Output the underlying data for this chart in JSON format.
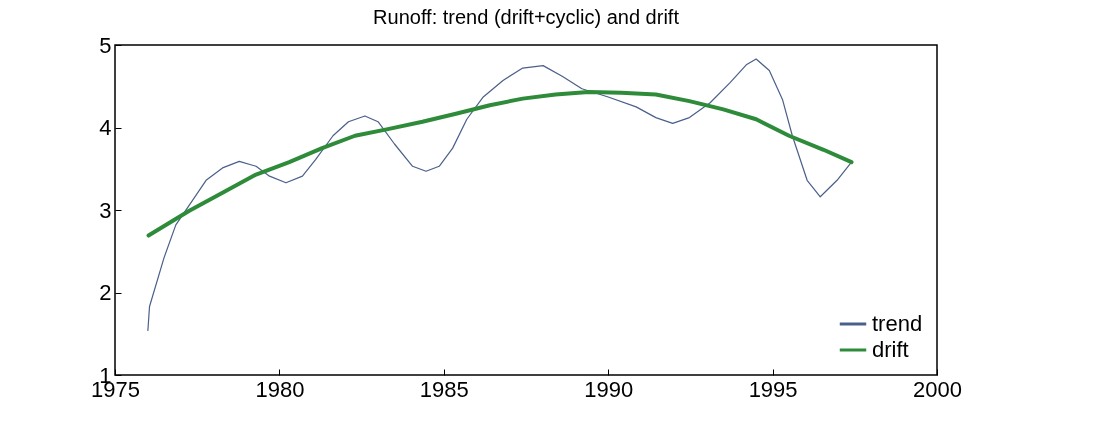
{
  "chart_data": {
    "type": "line",
    "title": "Runoff: trend (drift+cyclic) and drift",
    "xlim": [
      1975,
      2000
    ],
    "xticks": [
      1975,
      1980,
      1985,
      1990,
      1995,
      2000
    ],
    "ylim": [
      1,
      5
    ],
    "yticks": [
      1,
      2,
      3,
      4,
      5
    ],
    "grid": false,
    "legend": "bottom right",
    "series": [
      {
        "name": "trend",
        "color": "#4a5f8a",
        "x": [
          1976.0,
          1976.05,
          1976.49,
          1976.85,
          1977.26,
          1977.77,
          1978.27,
          1978.78,
          1979.29,
          1979.7,
          1980.2,
          1980.7,
          1981.1,
          1981.63,
          1982.1,
          1982.6,
          1983.0,
          1983.5,
          1984.05,
          1984.46,
          1984.86,
          1985.27,
          1985.7,
          1986.2,
          1986.8,
          1987.4,
          1988.02,
          1988.6,
          1989.2,
          1990.0,
          1990.85,
          1991.45,
          1991.96,
          1992.47,
          1993.1,
          1993.7,
          1994.2,
          1994.5,
          1994.9,
          1995.3,
          1995.6,
          1996.05,
          1996.45,
          1996.96,
          1997.4
        ],
        "values": [
          1.54,
          1.83,
          2.42,
          2.82,
          3.06,
          3.36,
          3.51,
          3.59,
          3.53,
          3.41,
          3.33,
          3.41,
          3.61,
          3.9,
          4.07,
          4.14,
          4.07,
          3.8,
          3.53,
          3.47,
          3.53,
          3.75,
          4.1,
          4.37,
          4.57,
          4.72,
          4.75,
          4.62,
          4.47,
          4.37,
          4.25,
          4.12,
          4.05,
          4.12,
          4.3,
          4.54,
          4.76,
          4.83,
          4.69,
          4.34,
          3.9,
          3.36,
          3.16,
          3.36,
          3.58
        ]
      },
      {
        "name": "drift",
        "color": "#2e8b3a",
        "x": [
          1976.02,
          1977.26,
          1978.27,
          1979.29,
          1980.3,
          1981.3,
          1982.3,
          1983.3,
          1984.35,
          1985.4,
          1986.4,
          1987.4,
          1988.4,
          1989.4,
          1990.4,
          1991.45,
          1992.47,
          1993.5,
          1994.5,
          1995.5,
          1996.55,
          1997.4
        ],
        "values": [
          2.69,
          2.99,
          3.21,
          3.43,
          3.58,
          3.75,
          3.9,
          3.98,
          4.07,
          4.17,
          4.27,
          4.35,
          4.4,
          4.43,
          4.42,
          4.4,
          4.32,
          4.22,
          4.1,
          3.9,
          3.73,
          3.58
        ]
      }
    ]
  }
}
